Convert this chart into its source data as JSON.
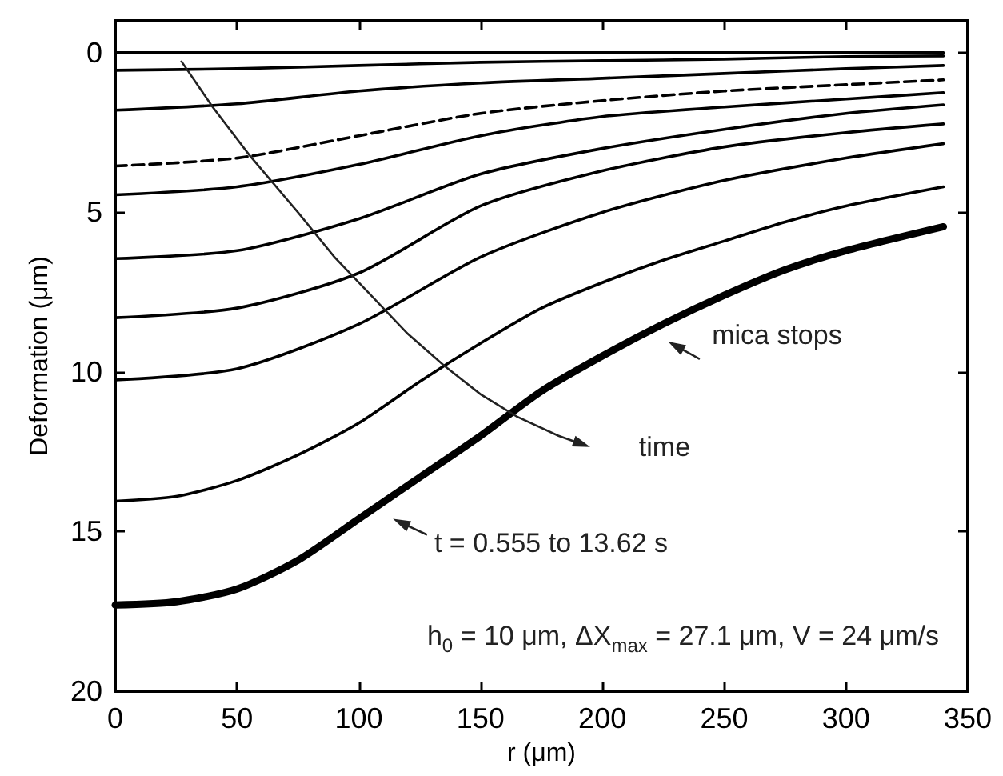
{
  "chart_data": {
    "type": "line",
    "xlabel": "r (μm)",
    "ylabel": "Deformation (μm)",
    "xlim": [
      0,
      350
    ],
    "xticks": [
      0,
      50,
      100,
      150,
      200,
      250,
      300,
      350
    ],
    "ylim": [
      20,
      -1
    ],
    "yticks": [
      0,
      5,
      10,
      15,
      20
    ],
    "grid": false,
    "marker": "none",
    "series": [
      {
        "color": "#000000",
        "x": [
          0,
          50,
          100,
          150,
          200,
          250,
          300,
          340
        ],
        "values": [
          0,
          0,
          0,
          0,
          0,
          0,
          0,
          0
        ]
      },
      {
        "color": "#000000",
        "x": [
          0,
          50,
          100,
          150,
          200,
          250,
          300,
          340
        ],
        "values": [
          0.55,
          0.5,
          0.4,
          0.3,
          0.25,
          0.2,
          0.12,
          0.1
        ]
      },
      {
        "color": "#000000",
        "x": [
          0,
          50,
          100,
          150,
          200,
          250,
          300,
          340
        ],
        "values": [
          1.8,
          1.6,
          1.2,
          0.95,
          0.8,
          0.65,
          0.5,
          0.4
        ]
      },
      {
        "color": "#000000",
        "line_style": "dashed",
        "x": [
          0,
          50,
          100,
          150,
          200,
          250,
          300,
          340
        ],
        "values": [
          3.55,
          3.3,
          2.6,
          1.9,
          1.5,
          1.2,
          1.0,
          0.85
        ]
      },
      {
        "color": "#000000",
        "x": [
          0,
          50,
          100,
          150,
          200,
          250,
          300,
          340
        ],
        "values": [
          4.45,
          4.2,
          3.5,
          2.6,
          2.0,
          1.7,
          1.45,
          1.25
        ]
      },
      {
        "color": "#000000",
        "x": [
          0,
          50,
          100,
          150,
          200,
          250,
          300,
          340
        ],
        "values": [
          6.45,
          6.2,
          5.2,
          3.8,
          3.0,
          2.4,
          1.9,
          1.63
        ]
      },
      {
        "color": "#000000",
        "x": [
          0,
          50,
          100,
          150,
          200,
          250,
          300,
          340
        ],
        "values": [
          8.3,
          8.0,
          6.9,
          4.8,
          3.7,
          2.95,
          2.5,
          2.23
        ]
      },
      {
        "color": "#000000",
        "x": [
          0,
          50,
          100,
          150,
          200,
          250,
          300,
          340
        ],
        "values": [
          10.25,
          9.9,
          8.5,
          6.4,
          5.0,
          4.0,
          3.3,
          2.85
        ]
      },
      {
        "color": "#000000",
        "x": [
          0,
          25,
          50,
          75,
          100,
          125,
          150,
          175,
          200,
          225,
          250,
          275,
          300,
          340
        ],
        "values": [
          14.05,
          13.9,
          13.4,
          12.6,
          11.6,
          10.3,
          9.1,
          8.0,
          7.2,
          6.5,
          5.9,
          5.3,
          4.8,
          4.2
        ]
      },
      {
        "color": "#000000",
        "x": [
          0,
          25,
          50,
          75,
          100,
          125,
          150,
          175,
          200,
          225,
          250,
          275,
          300,
          340
        ],
        "values": [
          17.3,
          17.2,
          16.8,
          15.9,
          14.6,
          13.3,
          12.0,
          10.6,
          9.5,
          8.5,
          7.6,
          6.8,
          6.2,
          5.45
        ]
      }
    ],
    "annotations": [
      "time",
      "mica stops",
      "t = 0.555 to 13.62 s",
      "h$_{0}$ = 10 μm,  ΔX$_{max}$ = 27.1 μm,  V = 24 μm/s"
    ]
  }
}
